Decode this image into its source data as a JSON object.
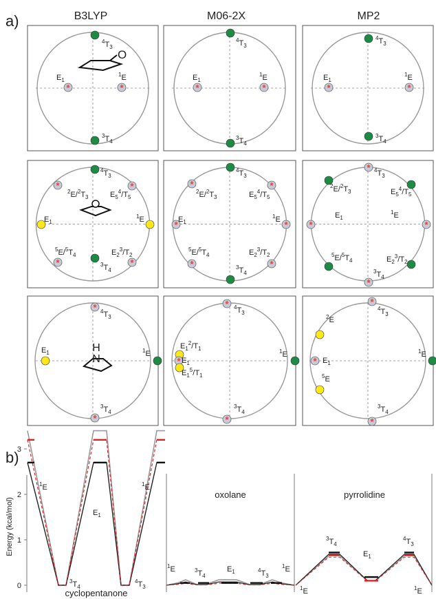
{
  "panel_labels": {
    "a": "a)",
    "b": "b)"
  },
  "methods": [
    "B3LYP",
    "M06-2X",
    "MP2"
  ],
  "markers": {
    "red_star": "*"
  },
  "colors": {
    "green": "#1e8b45",
    "yellow": "#ffe81a",
    "red_star": "#e0443a",
    "grey_dot": "#c9c9d8",
    "circle": "#9a9a9a",
    "axis": "#888888"
  },
  "pseudo": [
    [
      {
        "molecule": "cyclopentanone",
        "labels": [
          {
            "m": "4",
            "b": "T",
            "s": "3"
          },
          {
            "b": "E",
            "s": "1"
          },
          {
            "m": "1",
            "b": "E"
          },
          {
            "m": "3",
            "b": "T",
            "s": "4"
          }
        ]
      },
      {
        "labels": [
          {
            "m": "4",
            "b": "T",
            "s": "3"
          },
          {
            "b": "E",
            "s": "1"
          },
          {
            "m": "1",
            "b": "E"
          },
          {
            "m": "3",
            "b": "T",
            "s": "4"
          }
        ]
      },
      {
        "labels": [
          {
            "m": "4",
            "b": "T",
            "s": "3"
          },
          {
            "b": "E",
            "s": "1"
          },
          {
            "m": "1",
            "b": "E"
          },
          {
            "m": "3",
            "b": "T",
            "s": "4"
          }
        ]
      }
    ],
    [
      {
        "molecule": "oxolane",
        "labels": [
          {
            "m": "4",
            "b": "T",
            "s": "3"
          },
          {
            "m": "2",
            "b": "E/",
            "m2": "2",
            "b2": "T",
            "s2": "3"
          },
          {
            "b": "E",
            "s": "5",
            "b2": "/",
            "m2": "4",
            "b3": "T",
            "s3": "5"
          },
          {
            "b": "E",
            "s": "1"
          },
          {
            "m": "1",
            "b": "E"
          },
          {
            "m": "5",
            "b": "E/",
            "m2": "5",
            "b2": "T",
            "s2": "4"
          },
          {
            "b": "E",
            "s": "2",
            "b2": "/",
            "m2": "3",
            "b3": "T",
            "s3": "2"
          },
          {
            "m": "3",
            "b": "T",
            "s": "4"
          }
        ]
      },
      {
        "labels": [
          {
            "m": "4",
            "b": "T",
            "s": "3"
          },
          {
            "m": "2",
            "b": "E/",
            "m2": "2",
            "b2": "T",
            "s2": "3"
          },
          {
            "b": "E",
            "s": "5",
            "b2": "/",
            "m2": "4",
            "b3": "T",
            "s3": "5"
          },
          {
            "b": "E",
            "s": "1"
          },
          {
            "m": "1",
            "b": "E"
          },
          {
            "m": "5",
            "b": "E/",
            "m2": "5",
            "b2": "T",
            "s2": "4"
          },
          {
            "b": "E",
            "s": "2",
            "b2": "/",
            "m2": "3",
            "b3": "T",
            "s3": "2"
          },
          {
            "m": "3",
            "b": "T",
            "s": "4"
          }
        ]
      },
      {
        "labels": [
          {
            "m": "4",
            "b": "T",
            "s": "3"
          },
          {
            "m": "2",
            "b": "E/",
            "m2": "2",
            "b2": "T",
            "s2": "3"
          },
          {
            "b": "E",
            "s": "5",
            "b2": "/",
            "m2": "4",
            "b3": "T",
            "s3": "5"
          },
          {
            "b": "E",
            "s": "1"
          },
          {
            "m": "1",
            "b": "E"
          },
          {
            "m": "5",
            "b": "E/",
            "m2": "5",
            "b2": "T",
            "s2": "4"
          },
          {
            "b": "E",
            "s": "2",
            "b2": "/",
            "m2": "3",
            "b3": "T",
            "s3": "2"
          },
          {
            "m": "3",
            "b": "T",
            "s": "4"
          }
        ]
      }
    ],
    [
      {
        "molecule": "pyrrolidine",
        "atom": "H",
        "labels": [
          {
            "m": "4",
            "b": "T",
            "s": "3"
          },
          {
            "b": "E",
            "s": "1"
          },
          {
            "m": "1",
            "b": "E"
          },
          {
            "m": "3",
            "b": "T",
            "s": "4"
          }
        ]
      },
      {
        "labels": [
          {
            "m": "4",
            "b": "T",
            "s": "3"
          },
          {
            "b": "E",
            "s": "1",
            "b2": "/",
            "m2": "2",
            "b3": "T",
            "s3": "1"
          },
          {
            "b": "E",
            "s": "1"
          },
          {
            "b": "E",
            "s": "1",
            "b2": "/",
            "m2": "5",
            "b3": "T",
            "s3": "1"
          },
          {
            "m": "1",
            "b": "E"
          },
          {
            "m": "3",
            "b": "T",
            "s": "4"
          }
        ]
      },
      {
        "labels": [
          {
            "m": "4",
            "b": "T",
            "s": "3"
          },
          {
            "m": "2",
            "b": "E"
          },
          {
            "b": "E",
            "s": "1"
          },
          {
            "m": "1",
            "b": "E"
          },
          {
            "m": "5",
            "b": "E"
          },
          {
            "m": "3",
            "b": "T",
            "s": "4"
          }
        ]
      }
    ]
  ],
  "energy": {
    "ylabel": "Energy (kcal/mol)",
    "yticks": [
      "0",
      "1",
      "2",
      "3"
    ],
    "panels": [
      {
        "name": "cyclopentanone",
        "labels": [
          {
            "m": "1",
            "b": "E"
          },
          {
            "b": "E",
            "s": "1"
          },
          {
            "m": "1",
            "b": "E"
          },
          {
            "m": "3",
            "b": "T",
            "s": "4"
          },
          {
            "m": "4",
            "b": "T",
            "s": "3"
          }
        ]
      },
      {
        "name": "oxolane",
        "labels": [
          {
            "m": "1",
            "b": "E"
          },
          {
            "m": "3",
            "b": "T",
            "s": "4"
          },
          {
            "b": "E",
            "s": "1"
          },
          {
            "m": "4",
            "b": "T",
            "s": "3"
          },
          {
            "m": "1",
            "b": "E"
          }
        ]
      },
      {
        "name": "pyrrolidine",
        "labels": [
          {
            "m": "3",
            "b": "T",
            "s": "4"
          },
          {
            "b": "E",
            "s": "1"
          },
          {
            "m": "4",
            "b": "T",
            "s": "3"
          },
          {
            "m": "1",
            "b": "E"
          },
          {
            "m": "1",
            "b": "E"
          }
        ]
      }
    ]
  }
}
